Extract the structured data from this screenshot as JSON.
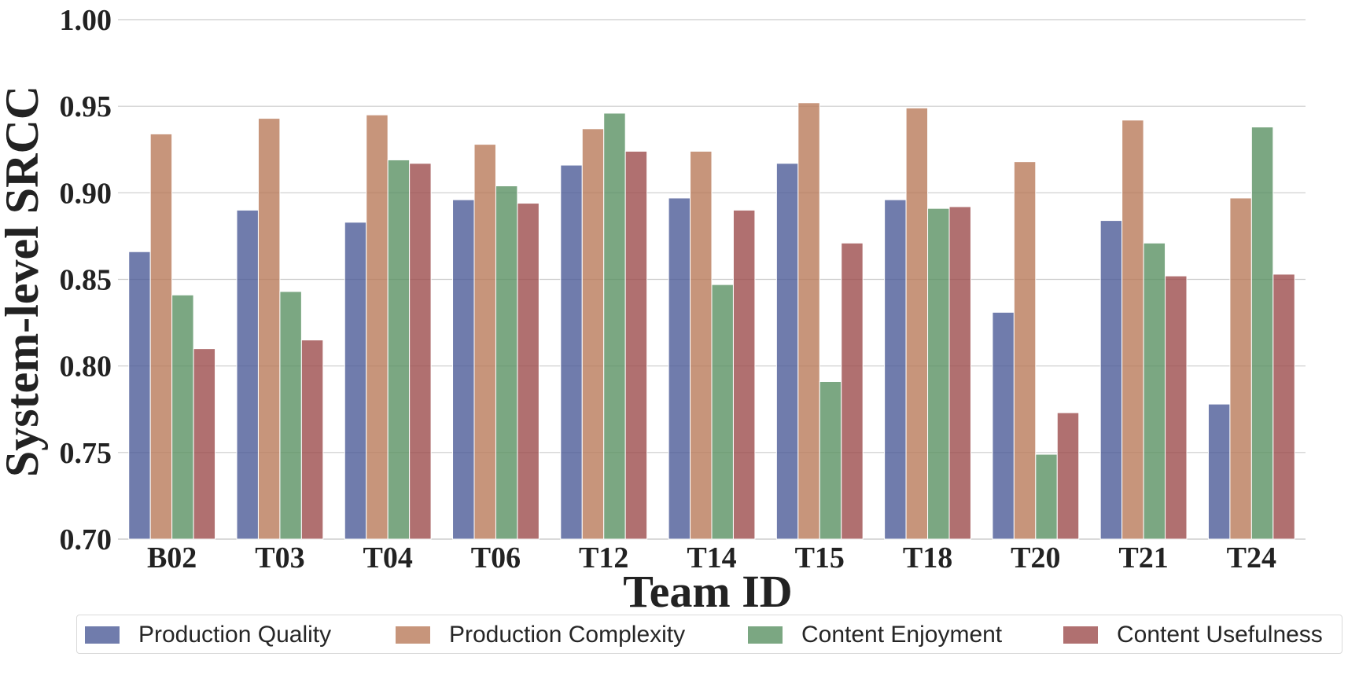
{
  "chart_data": {
    "type": "bar",
    "title": "",
    "xlabel": "Team ID",
    "ylabel": "System-level SRCC",
    "ylim": [
      0.7,
      1.0
    ],
    "yticks": [
      "0.70",
      "0.75",
      "0.80",
      "0.85",
      "0.90",
      "0.95",
      "1.00"
    ],
    "grid": true,
    "legend_position": "bottom",
    "categories": [
      "B02",
      "T03",
      "T04",
      "T06",
      "T12",
      "T14",
      "T15",
      "T18",
      "T20",
      "T21",
      "T24"
    ],
    "series": [
      {
        "name": "Production Quality",
        "color": "#4c5b97",
        "values": [
          0.866,
          0.89,
          0.883,
          0.896,
          0.916,
          0.897,
          0.917,
          0.896,
          0.831,
          0.884,
          0.778
        ]
      },
      {
        "name": "Production Complexity",
        "color": "#b97a5a",
        "values": [
          0.934,
          0.943,
          0.945,
          0.928,
          0.937,
          0.924,
          0.952,
          0.949,
          0.918,
          0.942,
          0.897
        ]
      },
      {
        "name": "Content Enjoyment",
        "color": "#5a9163",
        "values": [
          0.841,
          0.843,
          0.919,
          0.904,
          0.946,
          0.847,
          0.791,
          0.891,
          0.749,
          0.871,
          0.938
        ]
      },
      {
        "name": "Content Usefulness",
        "color": "#9c4c4c",
        "values": [
          0.81,
          0.815,
          0.917,
          0.894,
          0.924,
          0.89,
          0.871,
          0.892,
          0.773,
          0.852,
          0.853
        ]
      }
    ]
  }
}
